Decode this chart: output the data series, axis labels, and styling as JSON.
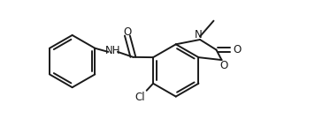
{
  "background_color": "#ffffff",
  "line_color": "#1a1a1a",
  "line_width": 1.4,
  "font_size": 8.5,
  "figsize": [
    3.56,
    1.51
  ],
  "dpi": 100,
  "xlim": [
    0.0,
    9.5
  ],
  "ylim": [
    -0.5,
    4.5
  ]
}
